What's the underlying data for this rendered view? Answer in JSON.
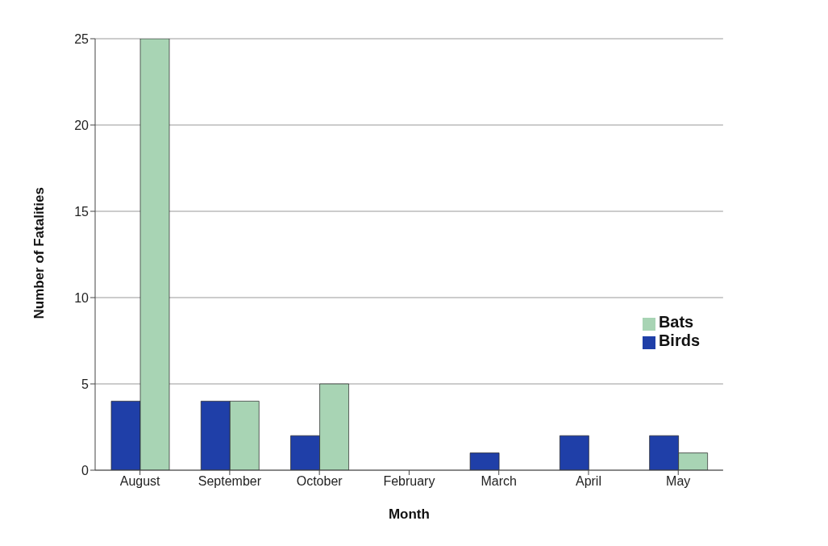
{
  "chart_data": {
    "type": "bar",
    "xlabel": "Month",
    "ylabel": "Number of Fatalities",
    "categories": [
      "August",
      "September",
      "October",
      "February",
      "March",
      "April",
      "May"
    ],
    "series": [
      {
        "name": "Birds",
        "color": "#1f3fa8",
        "values": [
          4,
          4,
          2,
          0,
          1,
          2,
          2
        ]
      },
      {
        "name": "Bats",
        "color": "#a8d4b4",
        "values": [
          25,
          4,
          5,
          0,
          0,
          0,
          1
        ]
      }
    ],
    "ylim": [
      0,
      25
    ],
    "yticks": [
      0,
      5,
      10,
      15,
      20,
      25
    ],
    "grid": "y",
    "legend": "right"
  }
}
